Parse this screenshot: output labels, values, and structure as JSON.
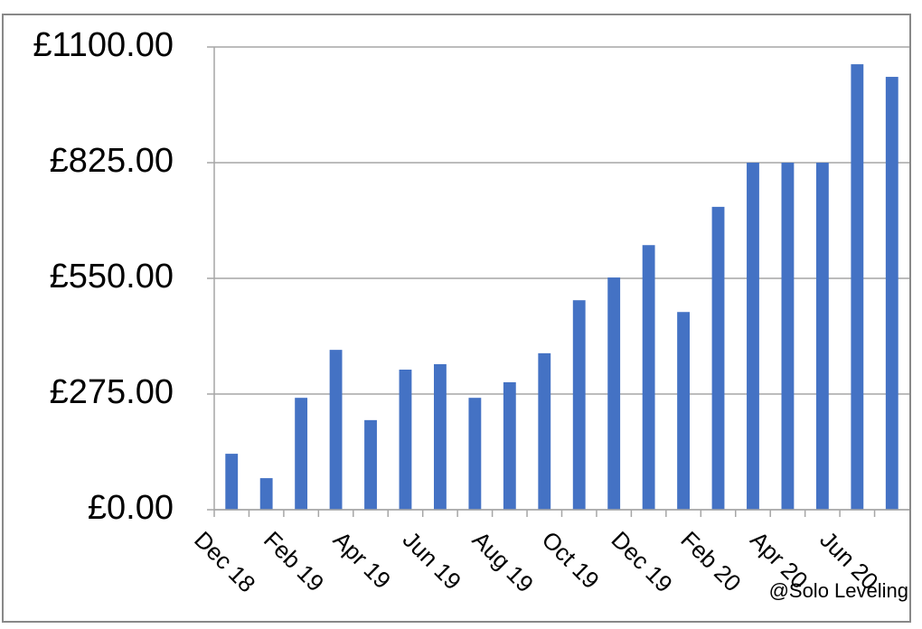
{
  "chart_data": {
    "type": "bar",
    "categories": [
      "Dec 18",
      null,
      "Feb 19",
      null,
      "Apr 19",
      null,
      "Jun 19",
      null,
      "Aug 19",
      null,
      "Oct 19",
      null,
      "Dec 19",
      null,
      "Feb 20",
      null,
      "Apr 20",
      null,
      "Jun 20",
      null
    ],
    "values": [
      133,
      75,
      266,
      380,
      213,
      333,
      346,
      266,
      303,
      372,
      498,
      552,
      629,
      470,
      720,
      825,
      825,
      825,
      1059,
      1029
    ],
    "color": "#4472c4",
    "ylim": [
      0,
      1100
    ],
    "yticks": [
      {
        "value": 0,
        "label": "£0.00"
      },
      {
        "value": 275,
        "label": "£275.00"
      },
      {
        "value": 550,
        "label": "£550.00"
      },
      {
        "value": 825,
        "label": "£825.00"
      },
      {
        "value": 1100,
        "label": "£1100.00"
      }
    ],
    "grid": true,
    "watermark": "@Solo Leveling"
  }
}
